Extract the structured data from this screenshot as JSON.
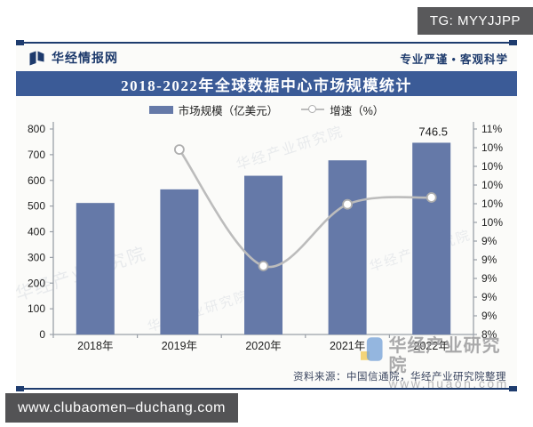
{
  "overlay": {
    "top_right_badge": "TG: MYYJJPP",
    "bottom_left_badge": "www.clubaomen–duchang.com"
  },
  "header": {
    "brand": "华经情报网",
    "tagline": "专业严谨 • 客观科学",
    "title": "2018-2022年全球数据中心市场规模统计"
  },
  "legend": [
    {
      "label": "市场规模（亿美元）",
      "swatch": "bar"
    },
    {
      "label": "增速（%）",
      "swatch": "line"
    }
  ],
  "chart_data": {
    "type": "bar+line",
    "categories": [
      "2018年",
      "2019年",
      "2020年",
      "2021年",
      "2022年"
    ],
    "series": [
      {
        "name": "市场规模（亿美元）",
        "type": "bar",
        "axis": "left",
        "values": [
          512,
          565,
          618,
          678,
          746.5
        ],
        "color": "#6579a8"
      },
      {
        "name": "增速（%）",
        "type": "line",
        "axis": "right",
        "values": [
          null,
          10.7,
          9.0,
          9.9,
          10.0
        ],
        "color": "#bcbcbc"
      }
    ],
    "left_axis": {
      "min": 0,
      "max": 800,
      "step": 100,
      "tick_labels": [
        "800",
        "700",
        "600",
        "500",
        "400",
        "300",
        "200",
        "100",
        "0"
      ]
    },
    "right_axis": {
      "min": 8,
      "max": 11,
      "tick_labels": [
        "11%",
        "10%",
        "10%",
        "10%",
        "10%",
        "10%",
        "9%",
        "9%",
        "9%",
        "9%",
        "9%",
        "8%"
      ]
    },
    "data_labels": {
      "last_bar": "746.5"
    },
    "grid": false,
    "legend_position": "top"
  },
  "watermark": {
    "big_text": "华经产业研究院",
    "url": "www.huaon.com",
    "diagonal_text": "华经产业研究院"
  },
  "source": "资料来源：中国信通院，华经产业研究院整理",
  "colors": {
    "banner_bg": "#3b5b97",
    "bar": "#6579a8",
    "line": "#bcbcbc",
    "navy_text": "#1d3a6c",
    "badge_bg": "#59595b"
  }
}
